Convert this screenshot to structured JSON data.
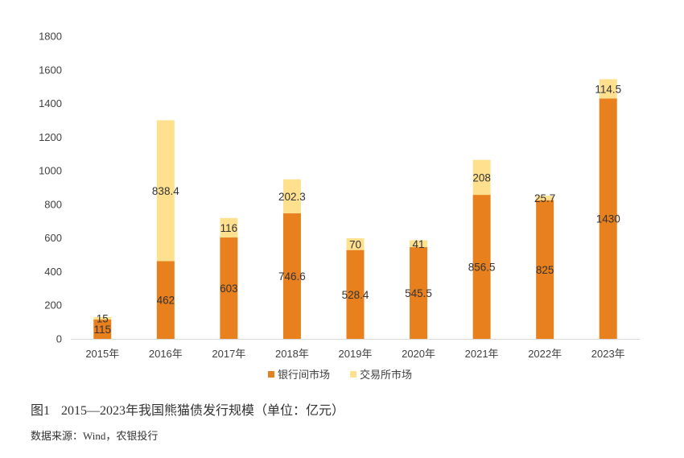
{
  "chart_data": {
    "type": "bar",
    "stacked": true,
    "categories": [
      "2015年",
      "2016年",
      "2017年",
      "2018年",
      "2019年",
      "2020年",
      "2021年",
      "2022年",
      "2023年"
    ],
    "series": [
      {
        "name": "银行间市场",
        "color": "#E8801E",
        "values": [
          115,
          462,
          603,
          746.6,
          528.4,
          545.5,
          856.5,
          825,
          1430
        ]
      },
      {
        "name": "交易所市场",
        "color": "#FEE08E",
        "values": [
          15,
          838.4,
          116,
          202.3,
          70,
          41,
          208,
          25.7,
          114.5
        ]
      }
    ],
    "ylim": [
      0,
      1800
    ],
    "yticks": [
      0,
      200,
      400,
      600,
      800,
      1000,
      1200,
      1400,
      1600,
      1800
    ],
    "data_labels": true,
    "grid": false,
    "legend": "bottom-center"
  },
  "figure": {
    "number": "图1",
    "caption": "2015—2023年我国熊猫债发行规模（单位：亿元）"
  },
  "source": "数据来源：Wind，农银投行"
}
